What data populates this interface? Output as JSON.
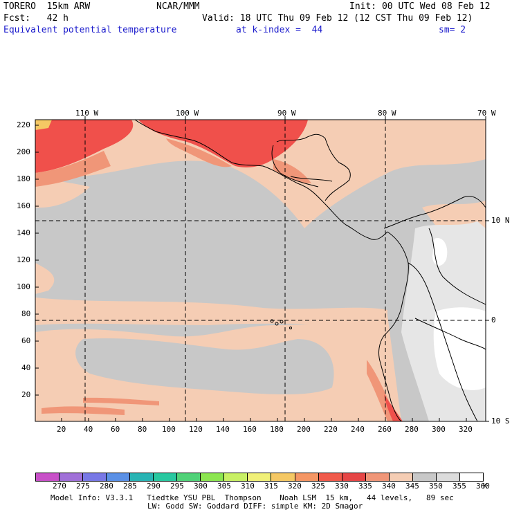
{
  "header": {
    "model": "TORERO  15km ARW",
    "center": "NCAR/MMM",
    "init": "Init: 00 UTC Wed 08 Feb 12",
    "fcst": "Fcst:   42 h",
    "valid": "Valid: 18 UTC Thu 09 Feb 12 (12 CST Thu 09 Feb 12)",
    "field": "Equivalent potential temperature",
    "level": "at k-index =  44",
    "smoothing": "sm= 2"
  },
  "map": {
    "lon_labels": [
      "110 W",
      "100 W",
      "90 W",
      "80 W",
      "70 W"
    ],
    "lat_labels": [
      "10 N",
      "0",
      "10 S"
    ],
    "y_ticks": [
      "220",
      "200",
      "180",
      "160",
      "140",
      "120",
      "100",
      "80",
      "60",
      "40",
      "20"
    ],
    "x_ticks": [
      "20",
      "40",
      "60",
      "80",
      "100",
      "120",
      "140",
      "160",
      "180",
      "200",
      "220",
      "240",
      "260",
      "280",
      "300",
      "320"
    ],
    "colors": {
      "background_field": "#c8c8c8",
      "warm_field": "#f5cdb4",
      "hot_field": "#f0504b",
      "cool_field": "#e6e6e6",
      "coast": "#000000",
      "grid": "#000000"
    }
  },
  "colorbar": {
    "labels": [
      "270",
      "275",
      "280",
      "285",
      "290",
      "295",
      "300",
      "305",
      "310",
      "315",
      "320",
      "325",
      "330",
      "335",
      "340",
      "345",
      "350",
      "355",
      "360"
    ],
    "unit": "K",
    "colors": [
      "#c850c8",
      "#a070d8",
      "#7878e6",
      "#5a90e6",
      "#28b4b4",
      "#28c8a0",
      "#50d278",
      "#8ce650",
      "#c8f064",
      "#f0f078",
      "#f5c864",
      "#f59664",
      "#f05a4b",
      "#e64646",
      "#f09678",
      "#f5cdb4",
      "#c8c8c8",
      "#dcdcdc",
      "#ffffff"
    ]
  },
  "footer": {
    "line1": "Model Info: V3.3.1   Tiedtke YSU PBL  Thompson    Noah LSM  15 km,   44 levels,   89 sec",
    "line2": "LW: Godd SW: Goddard DIFF: simple KM: 2D Smagor"
  }
}
